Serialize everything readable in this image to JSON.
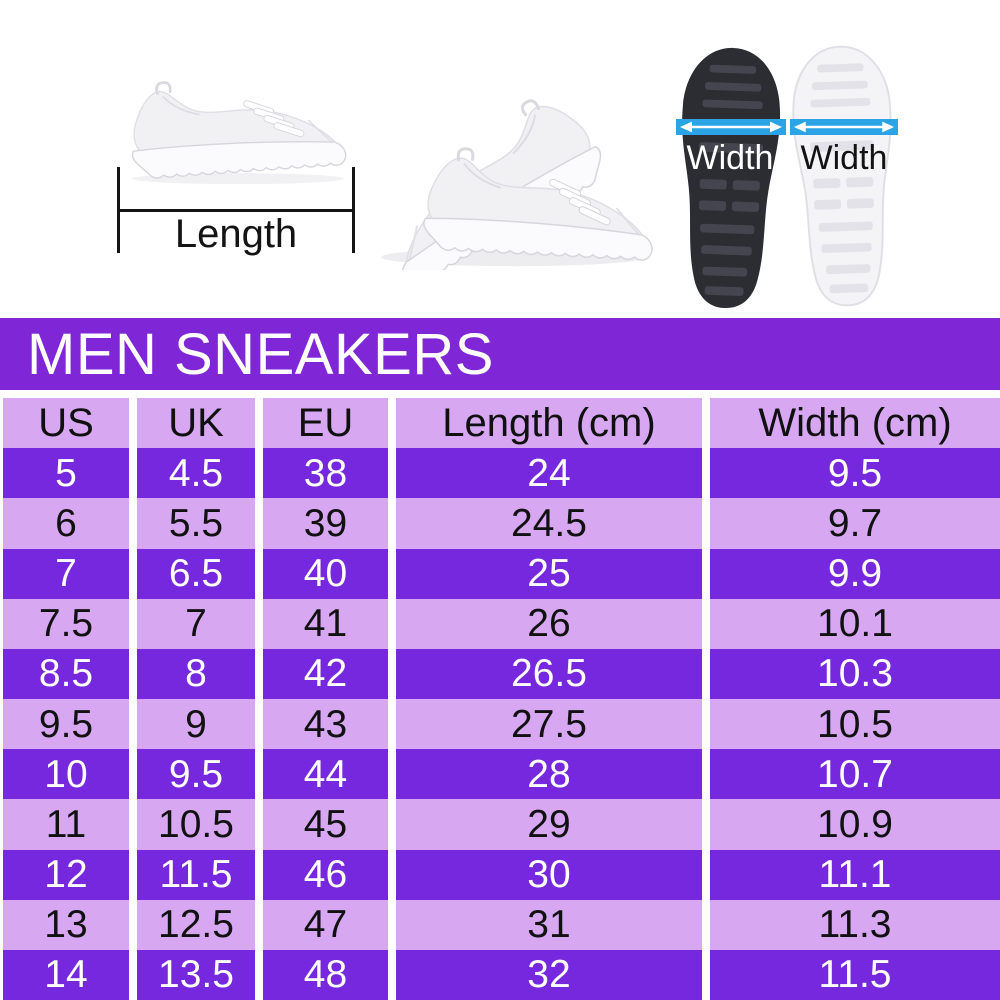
{
  "measure_guide": {
    "length_label": "Length",
    "width_labels": [
      "Width",
      "Width"
    ]
  },
  "banner": {
    "title": "MEN SNEAKERS"
  },
  "chart_data": {
    "type": "table",
    "title": "MEN SNEAKERS",
    "columns": [
      "US",
      "UK",
      "EU",
      "Length (cm)",
      "Width (cm)"
    ],
    "rows": [
      [
        "5",
        "4.5",
        "38",
        "24",
        "9.5"
      ],
      [
        "6",
        "5.5",
        "39",
        "24.5",
        "9.7"
      ],
      [
        "7",
        "6.5",
        "40",
        "25",
        "9.9"
      ],
      [
        "7.5",
        "7",
        "41",
        "26",
        "10.1"
      ],
      [
        "8.5",
        "8",
        "42",
        "26.5",
        "10.3"
      ],
      [
        "9.5",
        "9",
        "43",
        "27.5",
        "10.5"
      ],
      [
        "10",
        "9.5",
        "44",
        "28",
        "10.7"
      ],
      [
        "11",
        "10.5",
        "45",
        "29",
        "10.9"
      ],
      [
        "12",
        "11.5",
        "46",
        "30",
        "11.1"
      ],
      [
        "13",
        "12.5",
        "47",
        "31",
        "11.3"
      ],
      [
        "14",
        "13.5",
        "48",
        "32",
        "11.5"
      ]
    ]
  },
  "colors": {
    "banner_purple": "#7F27D6",
    "row_dark_purple": "#7628DE",
    "row_light_purple": "#D8A7F2",
    "header_light_purple": "#D8A7F2",
    "dark_row_text": "#FFFFFF",
    "light_row_text": "#111111",
    "width_bar_cyan": "#2AA4E4",
    "length_line_black": "#141414"
  }
}
